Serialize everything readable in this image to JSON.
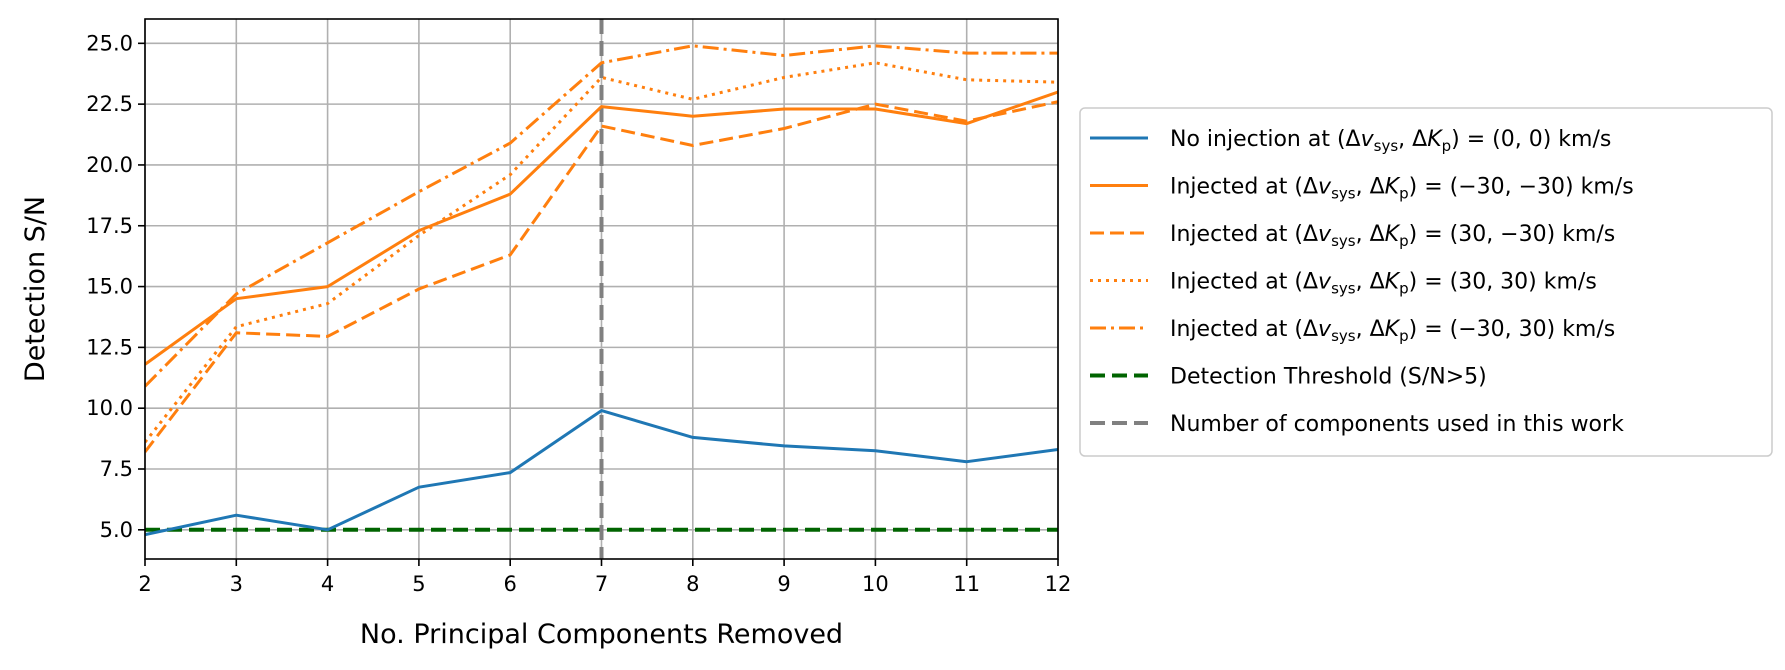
{
  "chart_data": {
    "type": "line",
    "title": "",
    "xlabel": "No. Principal Components Removed",
    "ylabel": "Detection S/N",
    "xlim": [
      2,
      12
    ],
    "ylim": [
      3.8,
      26.0
    ],
    "xticks": [
      2,
      3,
      4,
      5,
      6,
      7,
      8,
      9,
      10,
      11,
      12
    ],
    "xtick_labels": [
      "2",
      "3",
      "4",
      "5",
      "6",
      "7",
      "8",
      "9",
      "10",
      "11",
      "12"
    ],
    "yticks": [
      5.0,
      7.5,
      10.0,
      12.5,
      15.0,
      17.5,
      20.0,
      22.5,
      25.0
    ],
    "ytick_labels": [
      "5.0",
      "7.5",
      "10.0",
      "12.5",
      "15.0",
      "17.5",
      "20.0",
      "22.5",
      "25.0"
    ],
    "grid": true,
    "legend_position": "outside-right",
    "x": [
      2,
      3,
      4,
      5,
      6,
      7,
      8,
      9,
      10,
      11,
      12
    ],
    "series": [
      {
        "name": "No injection at (Δv_sys, ΔK_p) = (0, 0) km/s",
        "legend": {
          "prefix": "No injection at ",
          "suffix": " = (0, 0) km/s"
        },
        "color": "#1f77b4",
        "style": "solid",
        "values": [
          4.8,
          5.6,
          5.0,
          6.75,
          7.35,
          9.9,
          8.8,
          8.45,
          8.25,
          7.8,
          8.3
        ]
      },
      {
        "name": "Injected at (Δv_sys, ΔK_p) = (−30, −30) km/s",
        "legend": {
          "prefix": "Injected at ",
          "suffix": " = (−30, −30) km/s"
        },
        "color": "#ff7f0e",
        "style": "solid",
        "values": [
          11.8,
          14.5,
          15.0,
          17.3,
          18.8,
          22.4,
          22.0,
          22.3,
          22.3,
          21.7,
          23.0
        ]
      },
      {
        "name": "Injected at (Δv_sys, ΔK_p) = (30, −30) km/s",
        "legend": {
          "prefix": "Injected at ",
          "suffix": " = (30, −30) km/s"
        },
        "color": "#ff7f0e",
        "style": "dashed",
        "values": [
          8.2,
          13.1,
          12.95,
          14.9,
          16.3,
          21.6,
          20.8,
          21.5,
          22.5,
          21.8,
          22.6
        ]
      },
      {
        "name": "Injected at (Δv_sys, ΔK_p) = (30, 30) km/s",
        "legend": {
          "prefix": "Injected at ",
          "suffix": " = (30, 30) km/s"
        },
        "color": "#ff7f0e",
        "style": "dotted",
        "values": [
          8.6,
          13.35,
          14.3,
          17.1,
          19.6,
          23.6,
          22.7,
          23.6,
          24.2,
          23.5,
          23.4
        ]
      },
      {
        "name": "Injected at (Δv_sys, ΔK_p) = (−30, 30) km/s",
        "legend": {
          "prefix": "Injected at ",
          "suffix": " = (−30, 30) km/s"
        },
        "color": "#ff7f0e",
        "style": "dashdot",
        "values": [
          10.9,
          14.7,
          16.8,
          18.9,
          20.9,
          24.2,
          24.9,
          24.5,
          24.9,
          24.6,
          24.6
        ]
      }
    ],
    "reference_lines": [
      {
        "name": "Detection Threshold (S/N>5)",
        "orientation": "horizontal",
        "value": 5.0,
        "color": "#006400",
        "style": "dashed"
      },
      {
        "name": "Number of components used in this work",
        "orientation": "vertical",
        "value": 7,
        "color": "#808080",
        "style": "dashed"
      }
    ]
  }
}
